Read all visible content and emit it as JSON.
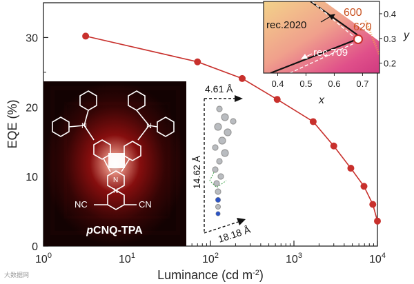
{
  "chart_data": {
    "type": "line",
    "xlabel": "Luminance (cd m",
    "xlabel_sup": "-2",
    "xlabel_close": ")",
    "ylabel": "EQE (%)",
    "xscale": "log",
    "xlim": [
      1,
      10000
    ],
    "ylim": [
      0,
      35
    ],
    "xtick_labels": [
      {
        "base": "10",
        "exp": "0",
        "value": 1
      },
      {
        "base": "10",
        "exp": "1",
        "value": 10
      },
      {
        "base": "10",
        "exp": "2",
        "value": 100
      },
      {
        "base": "10",
        "exp": "3",
        "value": 1000
      },
      {
        "base": "10",
        "exp": "4",
        "value": 10000
      }
    ],
    "yticks": [
      0,
      10,
      20,
      30
    ],
    "series": [
      {
        "color": "#c8302c",
        "x": [
          3.2,
          70,
          240,
          630,
          1700,
          3000,
          4800,
          6900,
          8800,
          10000
        ],
        "y": [
          30.2,
          26.5,
          24.1,
          21.1,
          17.9,
          14.4,
          11.2,
          8.6,
          6.0,
          3.6
        ]
      }
    ],
    "molecule_label_prefix": "p",
    "molecule_label": "CNQ-TPA",
    "substituent_left": "NC",
    "substituent_right": "CN",
    "dimensions": [
      "4.61 Å",
      "14.62 Å",
      "18.18 Å"
    ],
    "inset": {
      "xlabel": "x",
      "ylabel": "y",
      "xticks": [
        0.4,
        0.5,
        0.6,
        0.7
      ],
      "yticks": [
        0.2,
        0.3,
        0.4
      ],
      "xlim": [
        0.35,
        0.76
      ],
      "ylim": [
        0.16,
        0.45
      ],
      "labels": [
        "rec.2020",
        "rec.709",
        "600",
        "620"
      ],
      "point": [
        0.695,
        0.305
      ]
    }
  },
  "watermark": "大数据网",
  "colors": {
    "series": "#c8302c",
    "annotation_orange": "#c8501e"
  }
}
